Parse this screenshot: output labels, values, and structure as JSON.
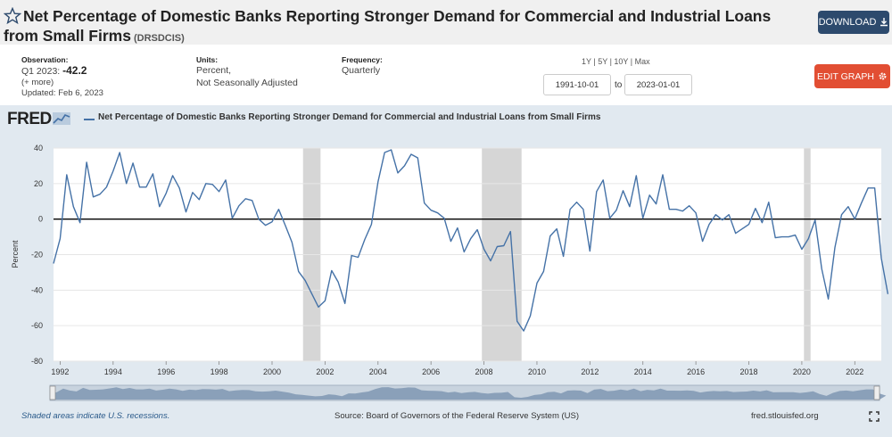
{
  "header": {
    "title": "Net Percentage of Domestic Banks Reporting Stronger Demand for Commercial and Industrial Loans from Small Firms",
    "series_id": "(DRSDCIS)",
    "download_label": "DOWNLOAD"
  },
  "meta": {
    "observation_label": "Observation:",
    "observation_period": "Q1 2023:",
    "observation_value": "-42.2",
    "more_link": "(+ more)",
    "updated": "Updated: Feb 6, 2023",
    "units_label": "Units:",
    "units_line1": "Percent,",
    "units_line2": "Not Seasonally Adjusted",
    "frequency_label": "Frequency:",
    "frequency_value": "Quarterly"
  },
  "controls": {
    "range_links": [
      "1Y",
      "5Y",
      "10Y",
      "Max"
    ],
    "start_date": "1991-10-01",
    "to_label": "to",
    "end_date": "2023-01-01",
    "edit_label": "EDIT GRAPH"
  },
  "chart_panel": {
    "logo": "FRED",
    "legend_text": "Net Percentage of Domestic Banks Reporting Stronger Demand for Commercial and Industrial Loans from Small Firms"
  },
  "footer": {
    "recession_note": "Shaded areas indicate U.S. recessions.",
    "source": "Source: Board of Governors of the Federal Reserve System (US)",
    "site": "fred.stlouisfed.org"
  },
  "colors": {
    "line": "#4572a7",
    "recession": "#d6d6d6",
    "panel": "#e1e9f0",
    "download": "#2d4a6d",
    "edit": "#e24e33"
  },
  "chart_data": {
    "type": "line",
    "ylabel": "Percent",
    "ylim": [
      -80,
      40
    ],
    "yticks": [
      40,
      20,
      0,
      -20,
      -40,
      -60,
      -80
    ],
    "xlim": [
      1991.75,
      2023.0
    ],
    "xticks": [
      "1992",
      "1994",
      "1996",
      "1998",
      "2000",
      "2002",
      "2004",
      "2006",
      "2008",
      "2010",
      "2012",
      "2014",
      "2016",
      "2018",
      "2020",
      "2022"
    ],
    "zero_line": true,
    "recessions": [
      [
        2001.17,
        2001.83
      ],
      [
        2007.92,
        2009.42
      ],
      [
        2020.08,
        2020.33
      ]
    ],
    "series": [
      {
        "start": 1991.75,
        "step": 0.25,
        "values": [
          -25,
          -11,
          25,
          7,
          -2,
          32,
          12.5,
          14,
          18,
          27,
          37.5,
          20,
          31.5,
          18,
          18,
          25.5,
          7,
          14.5,
          24.5,
          17.5,
          4,
          15,
          11,
          20,
          19.5,
          15.5,
          22,
          0.5,
          7.5,
          11.5,
          10.5,
          0,
          -3.5,
          -1.5,
          5.5,
          -3.5,
          -13,
          -29.5,
          -34.5,
          -42,
          -49.5,
          -46,
          -29,
          -35.5,
          -47.5,
          -20.5,
          -21.5,
          -11.5,
          -3,
          21,
          37.5,
          39,
          26,
          30,
          36.5,
          34.5,
          9,
          5,
          3.5,
          0.5,
          -12.5,
          -5,
          -18.5,
          -11,
          -6,
          -17,
          -23.5,
          -15.5,
          -15,
          -7,
          -57.5,
          -63,
          -54.5,
          -36,
          -29.5,
          -9.5,
          -5.5,
          -21,
          5.5,
          9.5,
          5.5,
          -18,
          15.5,
          22,
          0.5,
          5,
          16,
          7,
          24.5,
          0.5,
          13.5,
          8.5,
          25,
          5.5,
          5.5,
          4.5,
          7.5,
          3.5,
          -12.5,
          -3,
          2.5,
          -0.5,
          2.5,
          -8,
          -5.5,
          -3,
          6,
          -2,
          9.5,
          -10.5,
          -10,
          -10,
          -9,
          -17,
          -11,
          -0.5,
          -28,
          -45,
          -16,
          2.5,
          7,
          0,
          9,
          17.5,
          17.5,
          -22,
          -42.2
        ]
      }
    ]
  }
}
